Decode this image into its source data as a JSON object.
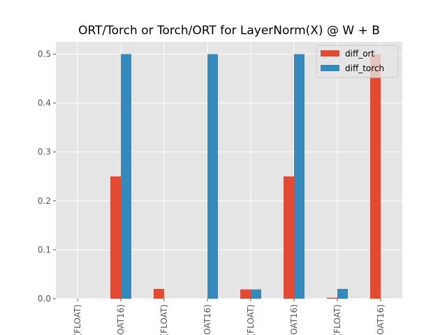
{
  "chart_data": {
    "type": "bar",
    "title": "ORT/Torch or Torch/ORT for LayerNorm(X) @ W + B",
    "xlabel": "",
    "ylabel": "",
    "categories": [
      "(FLOAT)",
      "OAT16)",
      "(FLOAT)",
      "OAT16)",
      "(FLOAT)",
      "OAT16)",
      "(FLOAT)",
      "OAT16)"
    ],
    "ylim": [
      0,
      0.525
    ],
    "yticks": [
      0.0,
      0.1,
      0.2,
      0.3,
      0.4,
      0.5
    ],
    "ytick_labels": [
      "0.0",
      "0.1",
      "0.2",
      "0.3",
      "0.4",
      "0.5"
    ],
    "series": [
      {
        "name": "diff_ort",
        "color": "#E24A33",
        "values": [
          0.0,
          0.25,
          0.02,
          0.0,
          0.019,
          0.25,
          0.002,
          0.5
        ]
      },
      {
        "name": "diff_torch",
        "color": "#348ABD",
        "values": [
          0.0,
          0.5,
          0.0,
          0.5,
          0.019,
          0.5,
          0.02,
          0.0
        ]
      }
    ],
    "grid": true,
    "legend_position": "top-right"
  },
  "style": {
    "axes_background": "#E5E5E5",
    "grid_color": "#FFFFFF"
  }
}
